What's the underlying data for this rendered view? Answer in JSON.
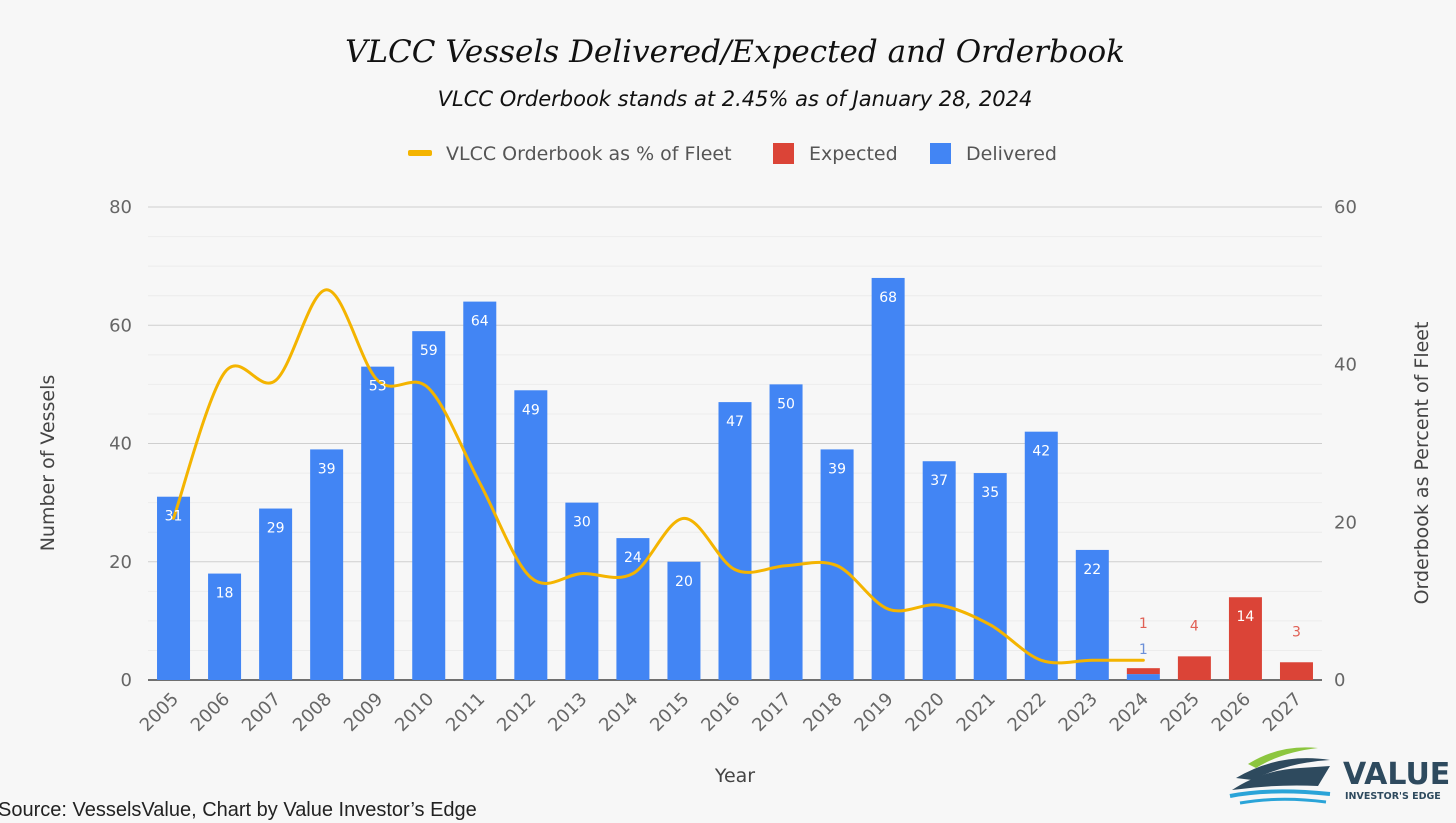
{
  "chart_data": {
    "type": "bar",
    "title": "VLCC Vessels Delivered/Expected and Orderbook",
    "subtitle": "VLCC Orderbook stands at 2.45% as of January 28, 2024",
    "xlabel": "Year",
    "ylabel": "Number of Vessels",
    "y2label": "Orderbook as Percent of Fleet",
    "ylim": [
      0,
      80
    ],
    "y2lim": [
      0,
      60
    ],
    "yticks": [
      0,
      20,
      40,
      60,
      80
    ],
    "y2ticks": [
      0,
      20,
      40,
      60
    ],
    "grid": true,
    "legend_position": "top-center",
    "categories": [
      "2005",
      "2006",
      "2007",
      "2008",
      "2009",
      "2010",
      "2011",
      "2012",
      "2013",
      "2014",
      "2015",
      "2016",
      "2017",
      "2018",
      "2019",
      "2020",
      "2021",
      "2022",
      "2023",
      "2024",
      "2025",
      "2026",
      "2027"
    ],
    "series": [
      {
        "name": "VLCC Orderbook as % of Fleet",
        "type": "line",
        "axis": "right",
        "color": "#f4b400",
        "values": [
          20.5,
          39,
          38,
          49.5,
          38,
          37,
          25,
          13,
          13.5,
          13.5,
          20.5,
          14,
          14.5,
          14.5,
          9,
          9.5,
          7,
          2.5,
          2.5,
          2.5,
          null,
          null,
          null
        ]
      },
      {
        "name": "Expected",
        "type": "bar",
        "axis": "left",
        "color": "#db4437",
        "label_color": "#e06055",
        "values": [
          null,
          null,
          null,
          null,
          null,
          null,
          null,
          null,
          null,
          null,
          null,
          null,
          null,
          null,
          null,
          null,
          null,
          null,
          null,
          1,
          4,
          14,
          3
        ]
      },
      {
        "name": "Delivered",
        "type": "bar",
        "axis": "left",
        "color": "#4285f4",
        "label_color": "#6b8fd8",
        "values": [
          31,
          18,
          29,
          39,
          53,
          59,
          64,
          49,
          30,
          24,
          20,
          47,
          50,
          39,
          68,
          37,
          35,
          42,
          22,
          1,
          null,
          null,
          null
        ]
      }
    ]
  },
  "source_note": "Source: VesselsValue, Chart by Value Investor’s Edge",
  "logo": {
    "name": "VALUE",
    "tagline": "INVESTOR'S EDGE",
    "colors": {
      "green": "#8cc63f",
      "blue": "#2aa4d8",
      "navy": "#2e4a5e"
    }
  }
}
